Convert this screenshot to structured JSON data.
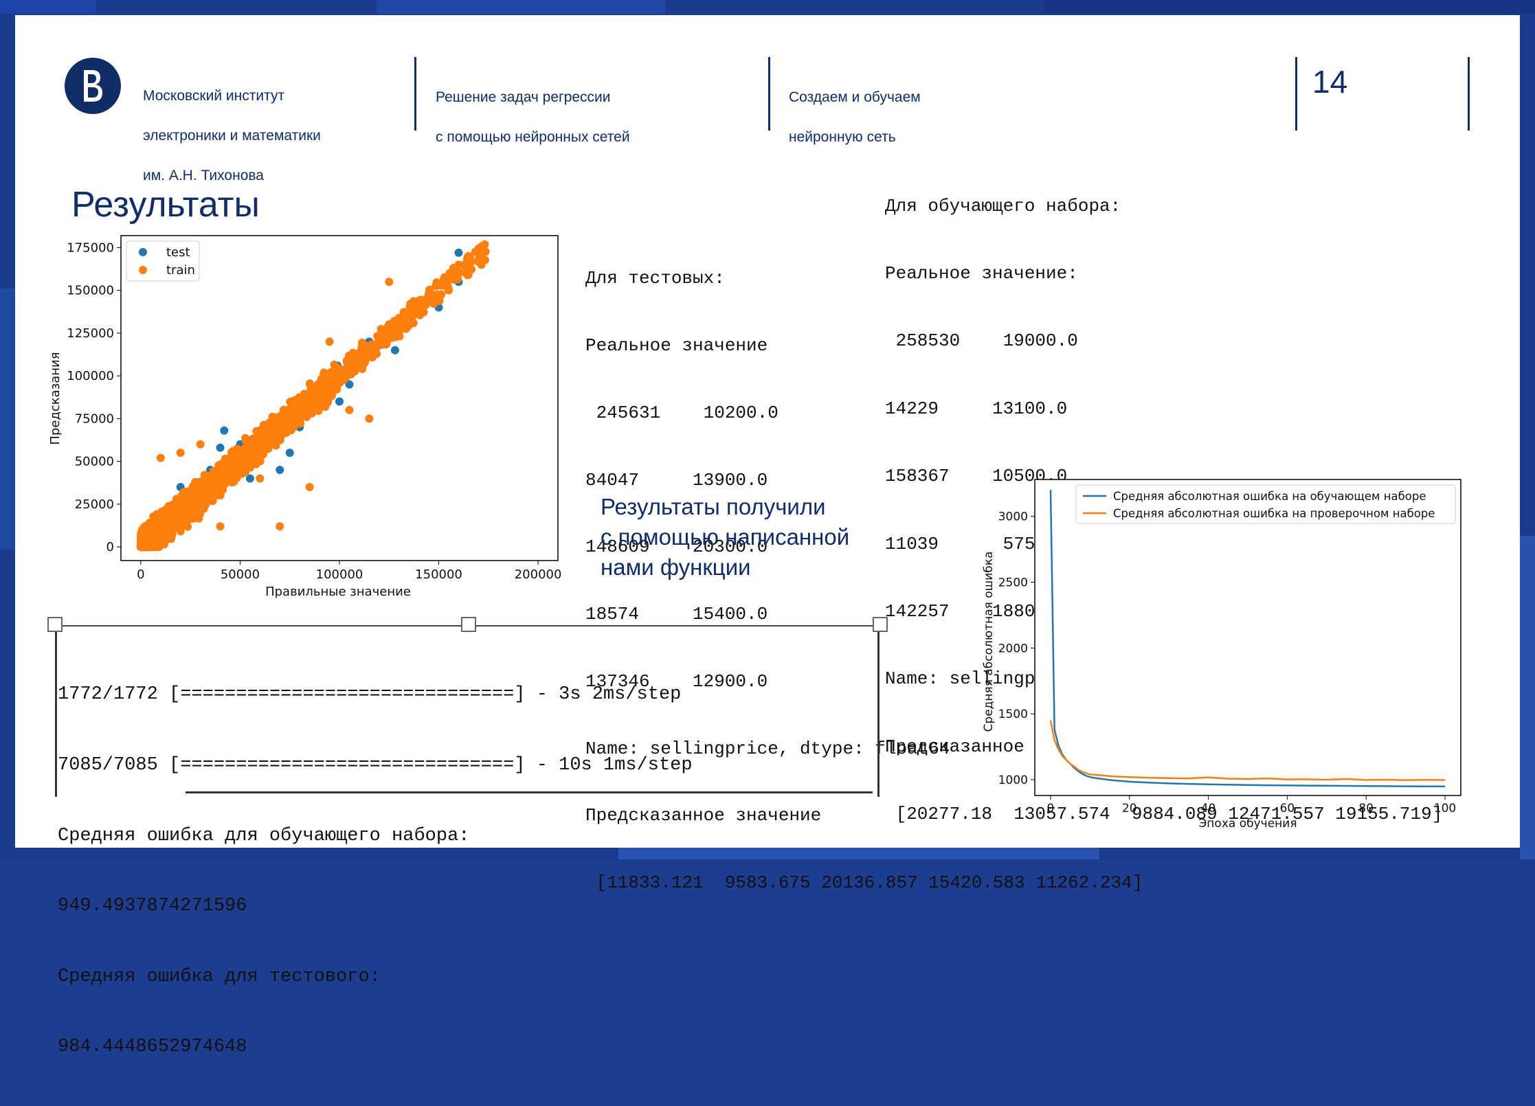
{
  "header": {
    "institute_line1": "Московский институт",
    "institute_line2": "электроники и математики",
    "institute_line3": "им. А.Н. Тихонова",
    "course_line1": "Решение задач регрессии",
    "course_line2": "с помощью нейронных сетей",
    "topic_line1": "Создаем и обучаем",
    "topic_line2": "нейронную сеть",
    "page_number": "14"
  },
  "title": "Результаты",
  "test_output": {
    "line1": "Для тестовых:",
    "line2": "Реальное значение",
    "rows": [
      " 245631    10200.0",
      "84047     13900.0",
      "148609    20300.0",
      "18574     15400.0",
      "137346    12900.0"
    ],
    "name_line": "Name: sellingprice, dtype: float64",
    "pred_label": "Предсказанное значение",
    "pred_values": " [11833.121  9583.675 20136.857 15420.583 11262.234]"
  },
  "train_output": {
    "line1": "Для обучающего набора:",
    "line2": "Реальное значение:",
    "rows": [
      " 258530    19000.0",
      "14229     13100.0",
      "158367    10500.0",
      "11039      5750.0",
      "142257    18800.0"
    ],
    "name_line": "Name: sellingprice, dtype: float64",
    "pred_label": "Предсказанное значение:",
    "pred_values": " [20277.18  13057.574  9884.089 12471.557 19155.719]"
  },
  "caption": {
    "line1": "Результаты получили",
    "line2": "с помощью написанной",
    "line3": "нами функции"
  },
  "terminal": {
    "line1": "1772/1772 [==============================] - 3s 2ms/step",
    "line2": "7085/7085 [==============================] - 10s 1ms/step",
    "line3": "Средняя ошибка для обучающего набора:",
    "line4": "949.4937874271596",
    "line5": "Средняя ошибка для тестового:",
    "line6": "984.4448652974648"
  },
  "chart_data": [
    {
      "type": "scatter",
      "title": "",
      "xlabel": "Правильные значение",
      "ylabel": "Предсказания",
      "xlim": [
        -10000,
        210000
      ],
      "ylim": [
        -8000,
        182000
      ],
      "x_ticks": [
        "0",
        "50000",
        "100000",
        "150000",
        "200000"
      ],
      "y_ticks": [
        "0",
        "25000",
        "50000",
        "75000",
        "100000",
        "125000",
        "150000",
        "175000"
      ],
      "legend": "top-left",
      "series": [
        {
          "name": "test",
          "color": "#1f77b4",
          "points": [
            [
              2000,
              3000
            ],
            [
              15000,
              20000
            ],
            [
              30000,
              38000
            ],
            [
              42000,
              68000
            ],
            [
              40000,
              58000
            ],
            [
              60000,
              52000
            ],
            [
              70000,
              45000
            ],
            [
              75000,
              55000
            ],
            [
              80000,
              70000
            ],
            [
              85000,
              80000
            ],
            [
              90000,
              88000
            ],
            [
              95000,
              98000
            ],
            [
              100000,
              85000
            ],
            [
              105000,
              95000
            ],
            [
              110000,
              108000
            ],
            [
              115000,
              120000
            ],
            [
              120000,
              118000
            ],
            [
              125000,
              128000
            ],
            [
              128000,
              115000
            ],
            [
              150000,
              140000
            ],
            [
              160000,
              155000
            ],
            [
              160000,
              172000
            ],
            [
              20000,
              35000
            ],
            [
              35000,
              45000
            ],
            [
              55000,
              40000
            ],
            [
              65000,
              72000
            ],
            [
              25000,
              28000
            ],
            [
              10000,
              15000
            ],
            [
              50000,
              60000
            ],
            [
              45000,
              52000
            ],
            [
              130000,
              128000
            ],
            [
              82000,
              78000
            ],
            [
              99000,
              106000
            ]
          ]
        },
        {
          "name": "train",
          "color": "#ff7f0e",
          "clouds": [
            {
              "x": [
                0,
                100000
              ],
              "spread": 12000,
              "n": 1400
            },
            {
              "x": [
                0,
                30000
              ],
              "spread": 14000,
              "n": 700
            },
            {
              "x": [
                90000,
                130000
              ],
              "spread": 9000,
              "n": 200
            },
            {
              "x": [
                130000,
                175000
              ],
              "spread": 10000,
              "n": 110
            }
          ],
          "outliers": [
            [
              10000,
              52000
            ],
            [
              20000,
              55000
            ],
            [
              30000,
              60000
            ],
            [
              85000,
              35000
            ],
            [
              40000,
              12000
            ],
            [
              70000,
              12000
            ],
            [
              105000,
              80000
            ],
            [
              115000,
              75000
            ],
            [
              160000,
              165000
            ],
            [
              165000,
              170000
            ],
            [
              170000,
              168000
            ],
            [
              155000,
              150000
            ],
            [
              60000,
              40000
            ],
            [
              95000,
              120000
            ],
            [
              125000,
              155000
            ]
          ]
        }
      ]
    },
    {
      "type": "line",
      "title": "",
      "xlabel": "Эпоха обучения",
      "ylabel": "Средняя абсолютная ошибка",
      "xlim": [
        -4,
        104
      ],
      "ylim": [
        880,
        3280
      ],
      "x_ticks": [
        "0",
        "20",
        "40",
        "60",
        "80",
        "100"
      ],
      "y_ticks": [
        "1000",
        "1500",
        "2000",
        "2500",
        "3000"
      ],
      "legend": "top-right",
      "x": [
        0,
        1,
        2,
        3,
        4,
        5,
        6,
        7,
        8,
        9,
        10,
        12,
        14,
        16,
        18,
        20,
        25,
        30,
        35,
        40,
        45,
        50,
        55,
        60,
        65,
        70,
        75,
        80,
        85,
        90,
        95,
        100
      ],
      "series": [
        {
          "name": "Средняя абсолютная ошибка на обучающем наборе",
          "color": "#1f77b4",
          "values": [
            3200,
            1380,
            1260,
            1190,
            1150,
            1120,
            1090,
            1065,
            1045,
            1030,
            1020,
            1010,
            1002,
            995,
            990,
            985,
            978,
            972,
            968,
            965,
            962,
            960,
            958,
            956,
            955,
            954,
            953,
            952,
            951,
            950,
            949,
            949
          ]
        },
        {
          "name": "Средняя абсолютная ошибка на проверочном наборе",
          "color": "#ff7f0e",
          "values": [
            1450,
            1300,
            1230,
            1180,
            1150,
            1120,
            1100,
            1075,
            1060,
            1050,
            1040,
            1035,
            1030,
            1025,
            1022,
            1020,
            1015,
            1012,
            1010,
            1018,
            1008,
            1005,
            1010,
            1002,
            1003,
            1000,
            1005,
            998,
            1000,
            997,
            999,
            998
          ]
        }
      ]
    }
  ]
}
